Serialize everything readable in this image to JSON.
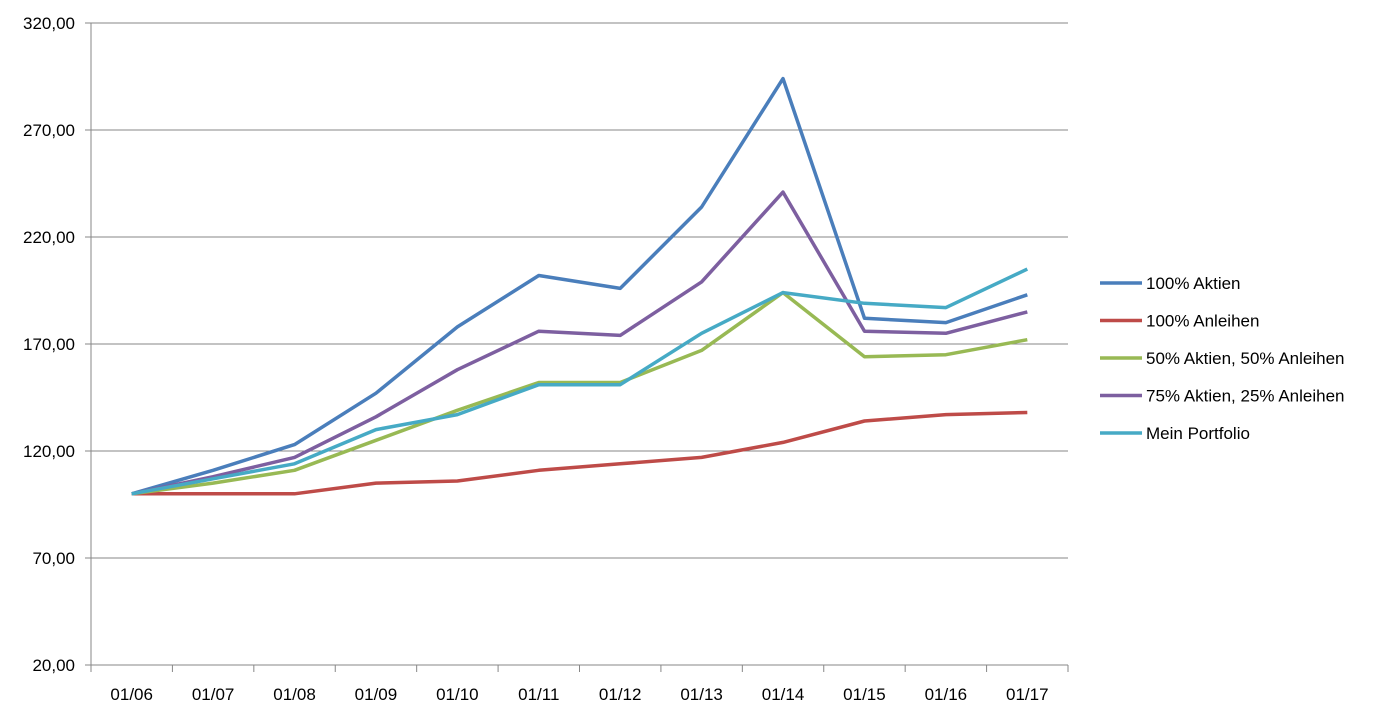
{
  "chart_data": {
    "type": "line",
    "categories": [
      "01/06",
      "01/07",
      "01/08",
      "01/09",
      "01/10",
      "01/11",
      "01/12",
      "01/13",
      "01/14",
      "01/15",
      "01/16",
      "01/17"
    ],
    "y_tick_labels": [
      "20,00",
      "70,00",
      "120,00",
      "170,00",
      "220,00",
      "270,00",
      "320,00"
    ],
    "ylim": [
      20,
      320
    ],
    "y_tick_step": 50,
    "grid": true,
    "legend_position": "right",
    "series": [
      {
        "name": "100% Aktien",
        "color": "#4A7EBB",
        "values": [
          100,
          111,
          123,
          147,
          178,
          202,
          196,
          234,
          294,
          182,
          180,
          193
        ]
      },
      {
        "name": "100% Anleihen",
        "color": "#BE4B48",
        "values": [
          100,
          100,
          100,
          105,
          106,
          111,
          114,
          117,
          124,
          134,
          137,
          138
        ]
      },
      {
        "name": "50% Aktien, 50% Anleihen",
        "color": "#98B954",
        "values": [
          100,
          105,
          111,
          125,
          139,
          152,
          152,
          167,
          194,
          164,
          165,
          172
        ]
      },
      {
        "name": "75% Aktien, 25% Anleihen",
        "color": "#7D5FA0",
        "values": [
          100,
          108,
          117,
          136,
          158,
          176,
          174,
          199,
          241,
          176,
          175,
          185
        ]
      },
      {
        "name": "Mein Portfolio",
        "color": "#46AAC5",
        "values": [
          100,
          107,
          114,
          130,
          137,
          151,
          151,
          175,
          194,
          189,
          187,
          205
        ]
      }
    ]
  }
}
